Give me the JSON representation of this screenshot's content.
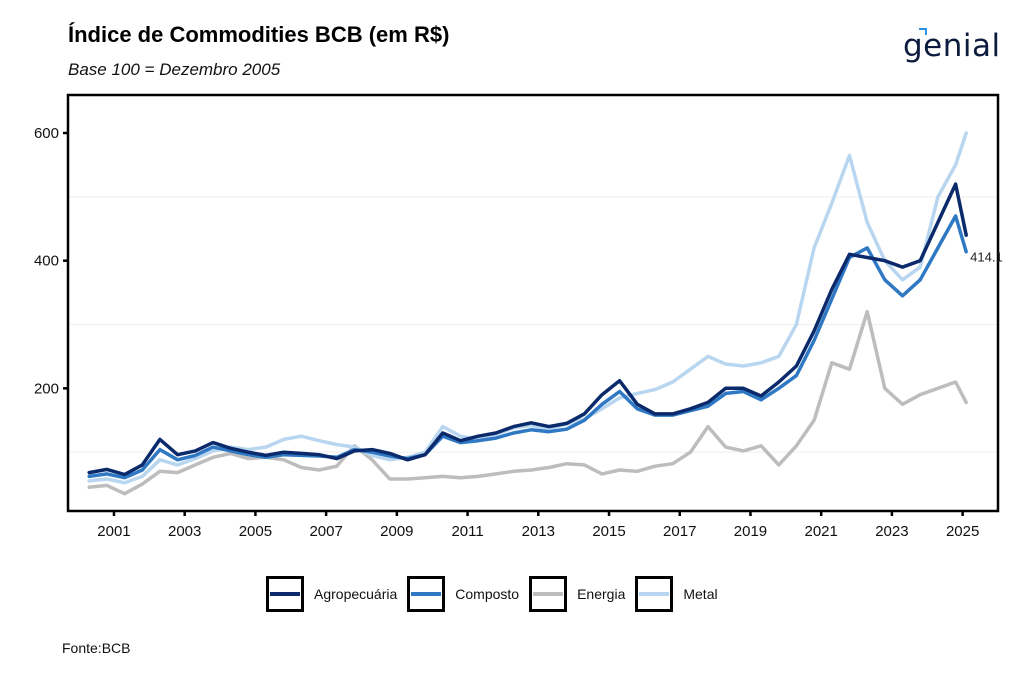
{
  "header": {
    "title": "Índice de Commodities BCB (em R$)",
    "subtitle": "Base 100 = Dezembro 2005",
    "logo_text": "genial"
  },
  "footer": {
    "source": "Fonte:BCB"
  },
  "chart_data": {
    "type": "line",
    "title": "Índice de Commodities BCB (em R$)",
    "subtitle": "Base 100 = Dezembro 2005",
    "xlabel": "",
    "ylabel": "",
    "xlim": [
      1999.7,
      2026.0
    ],
    "ylim": [
      0,
      650
    ],
    "x_ticks": [
      2001,
      2003,
      2005,
      2007,
      2009,
      2011,
      2013,
      2015,
      2017,
      2019,
      2021,
      2023,
      2025
    ],
    "x_tick_labels": [
      "2001",
      "2003",
      "2005",
      "2007",
      "2009",
      "2011",
      "2013",
      "2015",
      "2017",
      "2019",
      "2021",
      "2023",
      "2025"
    ],
    "y_ticks": [
      200,
      400,
      600
    ],
    "y_tick_labels": [
      "200",
      "400",
      "600"
    ],
    "grid": "horizontal minor lines at 100, 300, 500",
    "legend_position": "bottom",
    "end_label": {
      "series": "Composto",
      "text": "414.1"
    },
    "x": [
      2000.3,
      2000.8,
      2001.3,
      2001.8,
      2002.3,
      2002.8,
      2003.3,
      2003.8,
      2004.3,
      2004.8,
      2005.3,
      2005.8,
      2006.3,
      2006.8,
      2007.3,
      2007.8,
      2008.3,
      2008.8,
      2009.3,
      2009.8,
      2010.3,
      2010.8,
      2011.3,
      2011.8,
      2012.3,
      2012.8,
      2013.3,
      2013.8,
      2014.3,
      2014.8,
      2015.3,
      2015.8,
      2016.3,
      2016.8,
      2017.3,
      2017.8,
      2018.3,
      2018.8,
      2019.3,
      2019.8,
      2020.3,
      2020.8,
      2021.3,
      2021.8,
      2022.3,
      2022.8,
      2023.3,
      2023.8,
      2024.3,
      2024.8,
      2025.1
    ],
    "series": [
      {
        "name": "Agropecuária",
        "color": "#0b2a6b",
        "values": [
          68,
          73,
          65,
          80,
          120,
          96,
          102,
          115,
          106,
          100,
          95,
          100,
          98,
          96,
          90,
          102,
          104,
          98,
          88,
          96,
          130,
          118,
          125,
          130,
          140,
          146,
          140,
          145,
          160,
          190,
          212,
          175,
          160,
          160,
          168,
          178,
          200,
          200,
          188,
          210,
          235,
          290,
          355,
          410,
          405,
          400,
          390,
          400,
          460,
          520,
          440
        ]
      },
      {
        "name": "Composto",
        "color": "#2f78c4",
        "values": [
          62,
          66,
          60,
          72,
          104,
          88,
          95,
          108,
          102,
          96,
          92,
          96,
          95,
          94,
          92,
          104,
          100,
          94,
          90,
          96,
          125,
          115,
          118,
          122,
          130,
          135,
          132,
          136,
          150,
          175,
          195,
          168,
          158,
          158,
          165,
          172,
          192,
          195,
          182,
          200,
          220,
          275,
          340,
          405,
          420,
          370,
          345,
          370,
          420,
          470,
          414.1
        ]
      },
      {
        "name": "Energia",
        "color": "#bdbdbd",
        "values": [
          45,
          48,
          35,
          50,
          70,
          68,
          80,
          92,
          98,
          90,
          92,
          88,
          76,
          72,
          78,
          110,
          88,
          58,
          58,
          60,
          62,
          60,
          62,
          66,
          70,
          72,
          76,
          82,
          80,
          66,
          72,
          70,
          78,
          82,
          100,
          140,
          108,
          102,
          110,
          80,
          110,
          150,
          240,
          230,
          320,
          200,
          175,
          190,
          200,
          210,
          178
        ]
      },
      {
        "name": "Metal",
        "color": "#b9d6f0",
        "values": [
          55,
          58,
          52,
          62,
          88,
          80,
          90,
          102,
          108,
          104,
          108,
          120,
          125,
          118,
          112,
          108,
          95,
          88,
          92,
          100,
          140,
          125,
          120,
          128,
          138,
          142,
          136,
          144,
          152,
          168,
          185,
          192,
          198,
          210,
          230,
          250,
          238,
          235,
          240,
          250,
          300,
          420,
          490,
          565,
          460,
          400,
          370,
          390,
          500,
          550,
          600
        ]
      }
    ]
  }
}
